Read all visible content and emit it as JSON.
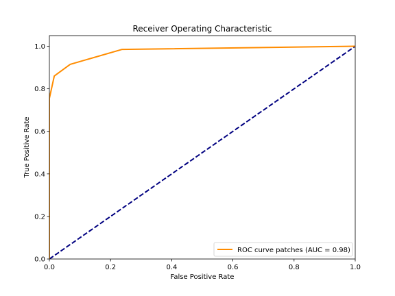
{
  "chart_data": {
    "type": "line",
    "title": "Receiver Operating Characteristic",
    "xlabel": "False Positive Rate",
    "ylabel": "True Positive Rate",
    "xlim": [
      0.0,
      1.0
    ],
    "ylim": [
      0.0,
      1.05
    ],
    "xticks": [
      "0.0",
      "0.2",
      "0.4",
      "0.6",
      "0.8",
      "1.0"
    ],
    "yticks": [
      "0.0",
      "0.2",
      "0.4",
      "0.6",
      "0.8",
      "1.0"
    ],
    "grid": false,
    "legend_position": "lower-right",
    "series": [
      {
        "name": "ROC curve patches (AUC = 0.98)",
        "color": "#ff8c00",
        "style": "solid",
        "x": [
          0.0,
          0.0,
          0.016,
          0.068,
          0.237,
          1.0
        ],
        "y": [
          0.0,
          0.755,
          0.86,
          0.915,
          0.985,
          1.0
        ]
      },
      {
        "name": "",
        "color": "#000080",
        "style": "dashed",
        "x": [
          0.0,
          1.0
        ],
        "y": [
          0.0,
          1.0
        ]
      }
    ]
  }
}
